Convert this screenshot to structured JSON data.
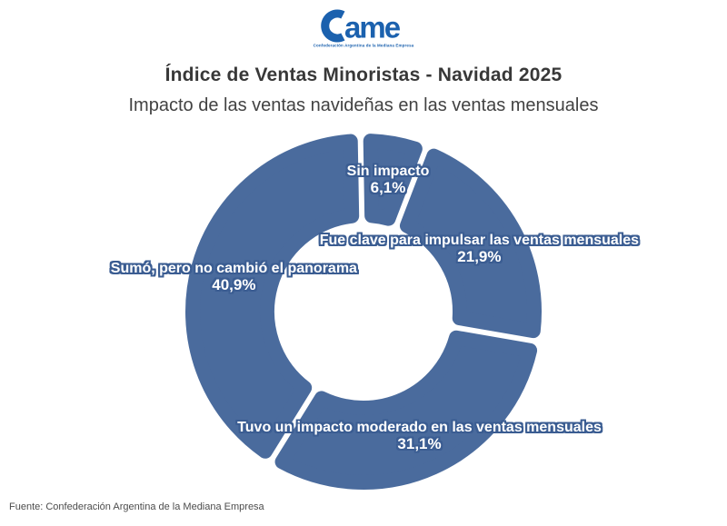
{
  "logo": {
    "wordmark": "Came",
    "tagline": "Confederación Argentina de la Mediana Empresa",
    "color": "#1b61ae"
  },
  "header": {
    "title": "Índice de Ventas Minoristas - Navidad 2025",
    "subtitle": "Impacto de las ventas navideñas en las ventas mensuales"
  },
  "chart_data": {
    "type": "pie",
    "variant": "donut",
    "title": "Impacto de las ventas navideñas en las ventas mensuales",
    "unit": "%",
    "start_angle_deg": -1,
    "direction": "clockwise-from-top",
    "legend": "none",
    "segments": [
      {
        "label": "Sin impacto",
        "value": 6.1,
        "display": "6,1%"
      },
      {
        "label": "Fue clave para impulsar las ventas mensuales",
        "value": 21.9,
        "display": "21,9%"
      },
      {
        "label": "Tuvo un impacto moderado en las ventas mensuales",
        "value": 31.1,
        "display": "31,1%"
      },
      {
        "label": "Sumó, pero no cambió el panorama",
        "value": 40.9,
        "display": "40,9%"
      }
    ],
    "colors": {
      "segment": "#4a6b9d",
      "label_fill": "#ffffff",
      "label_outline": "#3b5d92",
      "hole": "#ffffff"
    }
  },
  "footer": {
    "source": "Fuente: Confederación Argentina de la Mediana Empresa"
  }
}
